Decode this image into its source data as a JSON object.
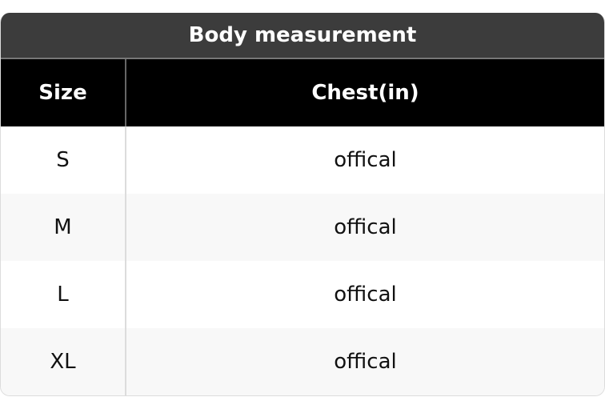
{
  "title": "Body measurement",
  "columns": [
    "Size",
    "Chest(in)"
  ],
  "rows": [
    [
      "S",
      "offical"
    ],
    [
      "M",
      "offical"
    ],
    [
      "L",
      "offical"
    ],
    [
      "XL",
      "offical"
    ]
  ]
}
